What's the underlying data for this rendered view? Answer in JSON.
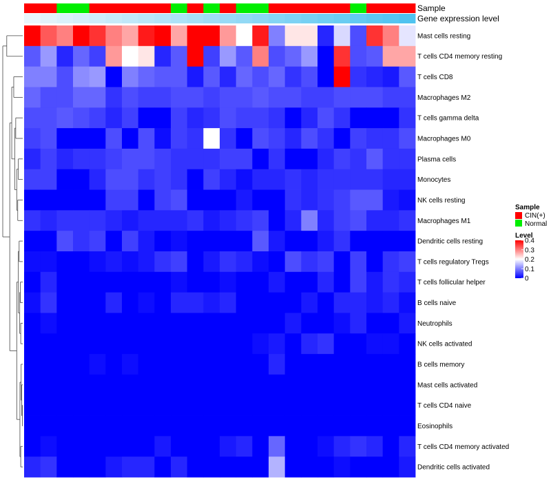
{
  "chart_data": {
    "type": "heatmap",
    "title": "",
    "rows": [
      "Mast cells resting",
      "T cells CD4 memory resting",
      "T cells CD8",
      "Macrophages M2",
      "T cells gamma delta",
      "Macrophages M0",
      "Plasma cells",
      "Monocytes",
      "NK cells resting",
      "Macrophages M1",
      "Dendritic cells resting",
      "T cells regulatory  Tregs",
      "T cells follicular helper",
      "B cells naive",
      "Neutrophils",
      "NK cells activated",
      "B cells memory",
      "Mast cells activated",
      "T cells CD4 naive",
      "Eosinophils",
      "T cells CD4 memory activated",
      "Dendritic cells activated"
    ],
    "column_count": 24,
    "values": [
      [
        0.4,
        0.33,
        0.3,
        0.4,
        0.36,
        0.3,
        0.27,
        0.38,
        0.4,
        0.27,
        0.4,
        0.4,
        0.28,
        0.2,
        0.38,
        0.1,
        0.22,
        0.22,
        0.03,
        0.17,
        0.06,
        0.36,
        0.3,
        0.18
      ],
      [
        0.07,
        0.12,
        0.03,
        0.08,
        0.05,
        0.28,
        0.2,
        0.22,
        0.03,
        0.07,
        0.4,
        0.05,
        0.12,
        0.07,
        0.3,
        0.06,
        0.08,
        0.12,
        -0.04,
        0.36,
        0.06,
        0.07,
        0.27,
        0.27
      ],
      [
        0.1,
        0.1,
        0.06,
        0.11,
        0.12,
        -0.02,
        0.1,
        0.08,
        0.07,
        0.07,
        0.02,
        0.07,
        0.03,
        0.08,
        0.06,
        0.08,
        0.04,
        0.06,
        -0.03,
        0.4,
        0.04,
        0.03,
        0.02,
        0.07
      ],
      [
        0.08,
        0.06,
        0.06,
        0.08,
        0.08,
        0.04,
        0.06,
        0.05,
        0.05,
        0.06,
        0.06,
        0.05,
        0.06,
        0.06,
        0.07,
        0.06,
        0.06,
        0.05,
        0.05,
        0.06,
        0.06,
        0.06,
        0.05,
        0.05
      ],
      [
        0.06,
        0.06,
        0.07,
        0.06,
        0.05,
        0.03,
        0.05,
        -0.02,
        -0.02,
        0.05,
        0.03,
        0.04,
        0.06,
        0.05,
        0.05,
        0.04,
        -0.02,
        0.03,
        0.06,
        0.04,
        -0.02,
        -0.02,
        -0.02,
        0.04
      ],
      [
        0.05,
        0.06,
        -0.03,
        -0.03,
        -0.03,
        0.06,
        0.0,
        0.06,
        0.01,
        0.05,
        0.04,
        0.2,
        0.04,
        -0.02,
        0.06,
        0.05,
        0.03,
        0.06,
        0.04,
        -0.01,
        0.05,
        0.04,
        0.04,
        0.06
      ],
      [
        0.03,
        0.05,
        0.03,
        0.04,
        0.04,
        0.05,
        0.06,
        0.06,
        0.05,
        0.04,
        0.04,
        0.04,
        0.05,
        0.05,
        0.0,
        0.04,
        0.0,
        0.0,
        0.03,
        0.05,
        0.04,
        0.07,
        0.04,
        0.04
      ],
      [
        0.05,
        0.05,
        -0.02,
        -0.02,
        0.03,
        0.06,
        0.06,
        0.04,
        0.05,
        0.04,
        0.0,
        0.05,
        0.03,
        0.01,
        0.03,
        0.03,
        0.04,
        0.03,
        0.04,
        0.04,
        0.04,
        0.04,
        0.03,
        0.03
      ],
      [
        -0.02,
        -0.02,
        -0.02,
        -0.02,
        -0.02,
        0.05,
        0.05,
        -0.02,
        0.05,
        0.06,
        -0.02,
        -0.02,
        -0.02,
        0.02,
        -0.02,
        -0.02,
        0.04,
        0.03,
        0.04,
        0.05,
        0.07,
        0.07,
        0.02,
        0.01
      ],
      [
        0.04,
        0.03,
        0.04,
        0.04,
        0.04,
        0.03,
        0.02,
        0.03,
        0.03,
        0.03,
        0.04,
        0.02,
        0.03,
        0.04,
        0.05,
        -0.01,
        0.03,
        0.1,
        0.03,
        0.05,
        0.06,
        0.03,
        0.03,
        0.04
      ],
      [
        -0.02,
        -0.02,
        0.06,
        0.04,
        0.05,
        -0.02,
        0.05,
        0.02,
        -0.02,
        0.01,
        -0.01,
        -0.01,
        -0.02,
        -0.02,
        0.07,
        0.02,
        0.0,
        -0.02,
        0.02,
        0.04,
        0.0,
        -0.02,
        -0.02,
        -0.02
      ],
      [
        0.01,
        0.01,
        -0.02,
        -0.02,
        0.01,
        0.02,
        0.01,
        0.02,
        0.04,
        0.05,
        -0.02,
        0.02,
        0.04,
        0.03,
        0.01,
        0.0,
        0.06,
        0.04,
        0.05,
        0.0,
        0.05,
        0.0,
        0.04,
        0.05
      ],
      [
        -0.02,
        0.03,
        -0.02,
        -0.02,
        -0.02,
        -0.02,
        -0.02,
        -0.02,
        -0.02,
        0.01,
        -0.02,
        -0.02,
        0.01,
        -0.02,
        -0.02,
        0.02,
        -0.02,
        -0.02,
        0.03,
        -0.02,
        0.05,
        0.02,
        0.04,
        0.03
      ],
      [
        0.01,
        0.04,
        -0.02,
        -0.02,
        -0.02,
        0.03,
        -0.02,
        0.01,
        -0.01,
        0.03,
        0.03,
        0.02,
        0.03,
        -0.02,
        -0.02,
        -0.02,
        -0.02,
        0.02,
        -0.02,
        0.03,
        0.03,
        0.02,
        0.03,
        0.01
      ],
      [
        -0.01,
        0.01,
        -0.02,
        -0.02,
        -0.02,
        -0.01,
        -0.02,
        -0.02,
        -0.02,
        0.0,
        -0.02,
        -0.02,
        -0.02,
        -0.02,
        -0.02,
        -0.02,
        0.02,
        -0.02,
        -0.02,
        0.01,
        0.03,
        -0.02,
        -0.02,
        0.02
      ],
      [
        -0.02,
        -0.02,
        -0.02,
        -0.01,
        -0.01,
        -0.02,
        -0.02,
        -0.02,
        -0.02,
        -0.02,
        -0.02,
        -0.02,
        -0.02,
        -0.02,
        0.01,
        0.02,
        -0.01,
        0.03,
        0.04,
        -0.02,
        -0.02,
        0.01,
        0.01,
        -0.02
      ],
      [
        -0.02,
        -0.02,
        -0.02,
        -0.01,
        0.01,
        -0.02,
        0.01,
        -0.02,
        -0.02,
        -0.02,
        -0.02,
        -0.02,
        -0.02,
        -0.02,
        -0.02,
        0.03,
        -0.01,
        -0.02,
        -0.02,
        -0.02,
        -0.02,
        -0.02,
        -0.02,
        -0.02
      ],
      [
        -0.02,
        -0.02,
        -0.02,
        -0.02,
        -0.02,
        -0.02,
        -0.02,
        -0.02,
        -0.02,
        -0.02,
        -0.02,
        -0.02,
        -0.02,
        -0.02,
        -0.02,
        0.0,
        -0.02,
        -0.02,
        -0.02,
        0.0,
        -0.02,
        -0.02,
        -0.02,
        -0.02
      ],
      [
        -0.02,
        -0.02,
        -0.02,
        -0.02,
        -0.02,
        -0.02,
        -0.02,
        -0.02,
        -0.02,
        -0.02,
        -0.02,
        -0.02,
        -0.02,
        -0.02,
        -0.02,
        -0.02,
        -0.02,
        -0.02,
        -0.02,
        -0.02,
        -0.02,
        -0.02,
        -0.02,
        -0.02
      ],
      [
        -0.02,
        -0.02,
        -0.02,
        -0.02,
        -0.02,
        -0.02,
        -0.02,
        -0.02,
        -0.02,
        -0.02,
        -0.02,
        -0.02,
        -0.02,
        -0.02,
        -0.02,
        -0.02,
        -0.02,
        -0.02,
        -0.02,
        -0.02,
        -0.02,
        -0.02,
        -0.02,
        -0.02
      ],
      [
        -0.02,
        0.01,
        -0.01,
        -0.02,
        0.0,
        -0.02,
        0.0,
        -0.01,
        0.02,
        -0.02,
        -0.02,
        -0.02,
        0.02,
        0.03,
        -0.02,
        0.08,
        0.0,
        -0.02,
        0.01,
        0.03,
        0.04,
        0.03,
        0.0,
        0.03
      ],
      [
        0.03,
        0.04,
        -0.02,
        -0.02,
        -0.02,
        0.02,
        0.03,
        0.03,
        -0.02,
        0.03,
        -0.02,
        -0.02,
        -0.01,
        -0.02,
        -0.02,
        0.14,
        0.0,
        -0.02,
        -0.02,
        0.01,
        -0.02,
        -0.02,
        -0.02,
        0.02
      ]
    ],
    "column_annotations": {
      "Sample": [
        "CIN(+)",
        "CIN(+)",
        "Normal",
        "Normal",
        "CIN(+)",
        "CIN(+)",
        "CIN(+)",
        "CIN(+)",
        "CIN(+)",
        "Normal",
        "CIN(+)",
        "Normal",
        "CIN(+)",
        "Normal",
        "Normal",
        "CIN(+)",
        "CIN(+)",
        "CIN(+)",
        "CIN(+)",
        "CIN(+)",
        "Normal",
        "CIN(+)",
        "CIN(+)",
        "CIN(+)"
      ],
      "Gene expression level": [
        0.3,
        0.9,
        1.4,
        1.9,
        2.4,
        2.9,
        3.4,
        3.9,
        4.4,
        4.9,
        5.4,
        5.9,
        6.4,
        6.9,
        7.4,
        7.9,
        8.4,
        8.9,
        9.4,
        9.9,
        10.4,
        10.9,
        11.4,
        11.9
      ]
    },
    "annotation_labels": [
      "Sample",
      "Gene expression level"
    ],
    "legend": {
      "sample_title": "Sample",
      "sample_entries": [
        {
          "label": "CIN(+)",
          "color": "#ff0000"
        },
        {
          "label": "Normal",
          "color": "#00ee00"
        }
      ],
      "level_title": "Level",
      "level_ticks": [
        "0.4",
        "0.3",
        "0.2",
        "0.1",
        "0"
      ],
      "level_range": [
        0,
        0.4
      ],
      "placement": "right"
    },
    "colors": {
      "low": "#0000ff",
      "mid": "#ffffff",
      "high": "#ff0000",
      "gene_expr_low": "#eaf6fc",
      "gene_expr_high": "#4fc3f0"
    },
    "dendrogram": "rows"
  }
}
